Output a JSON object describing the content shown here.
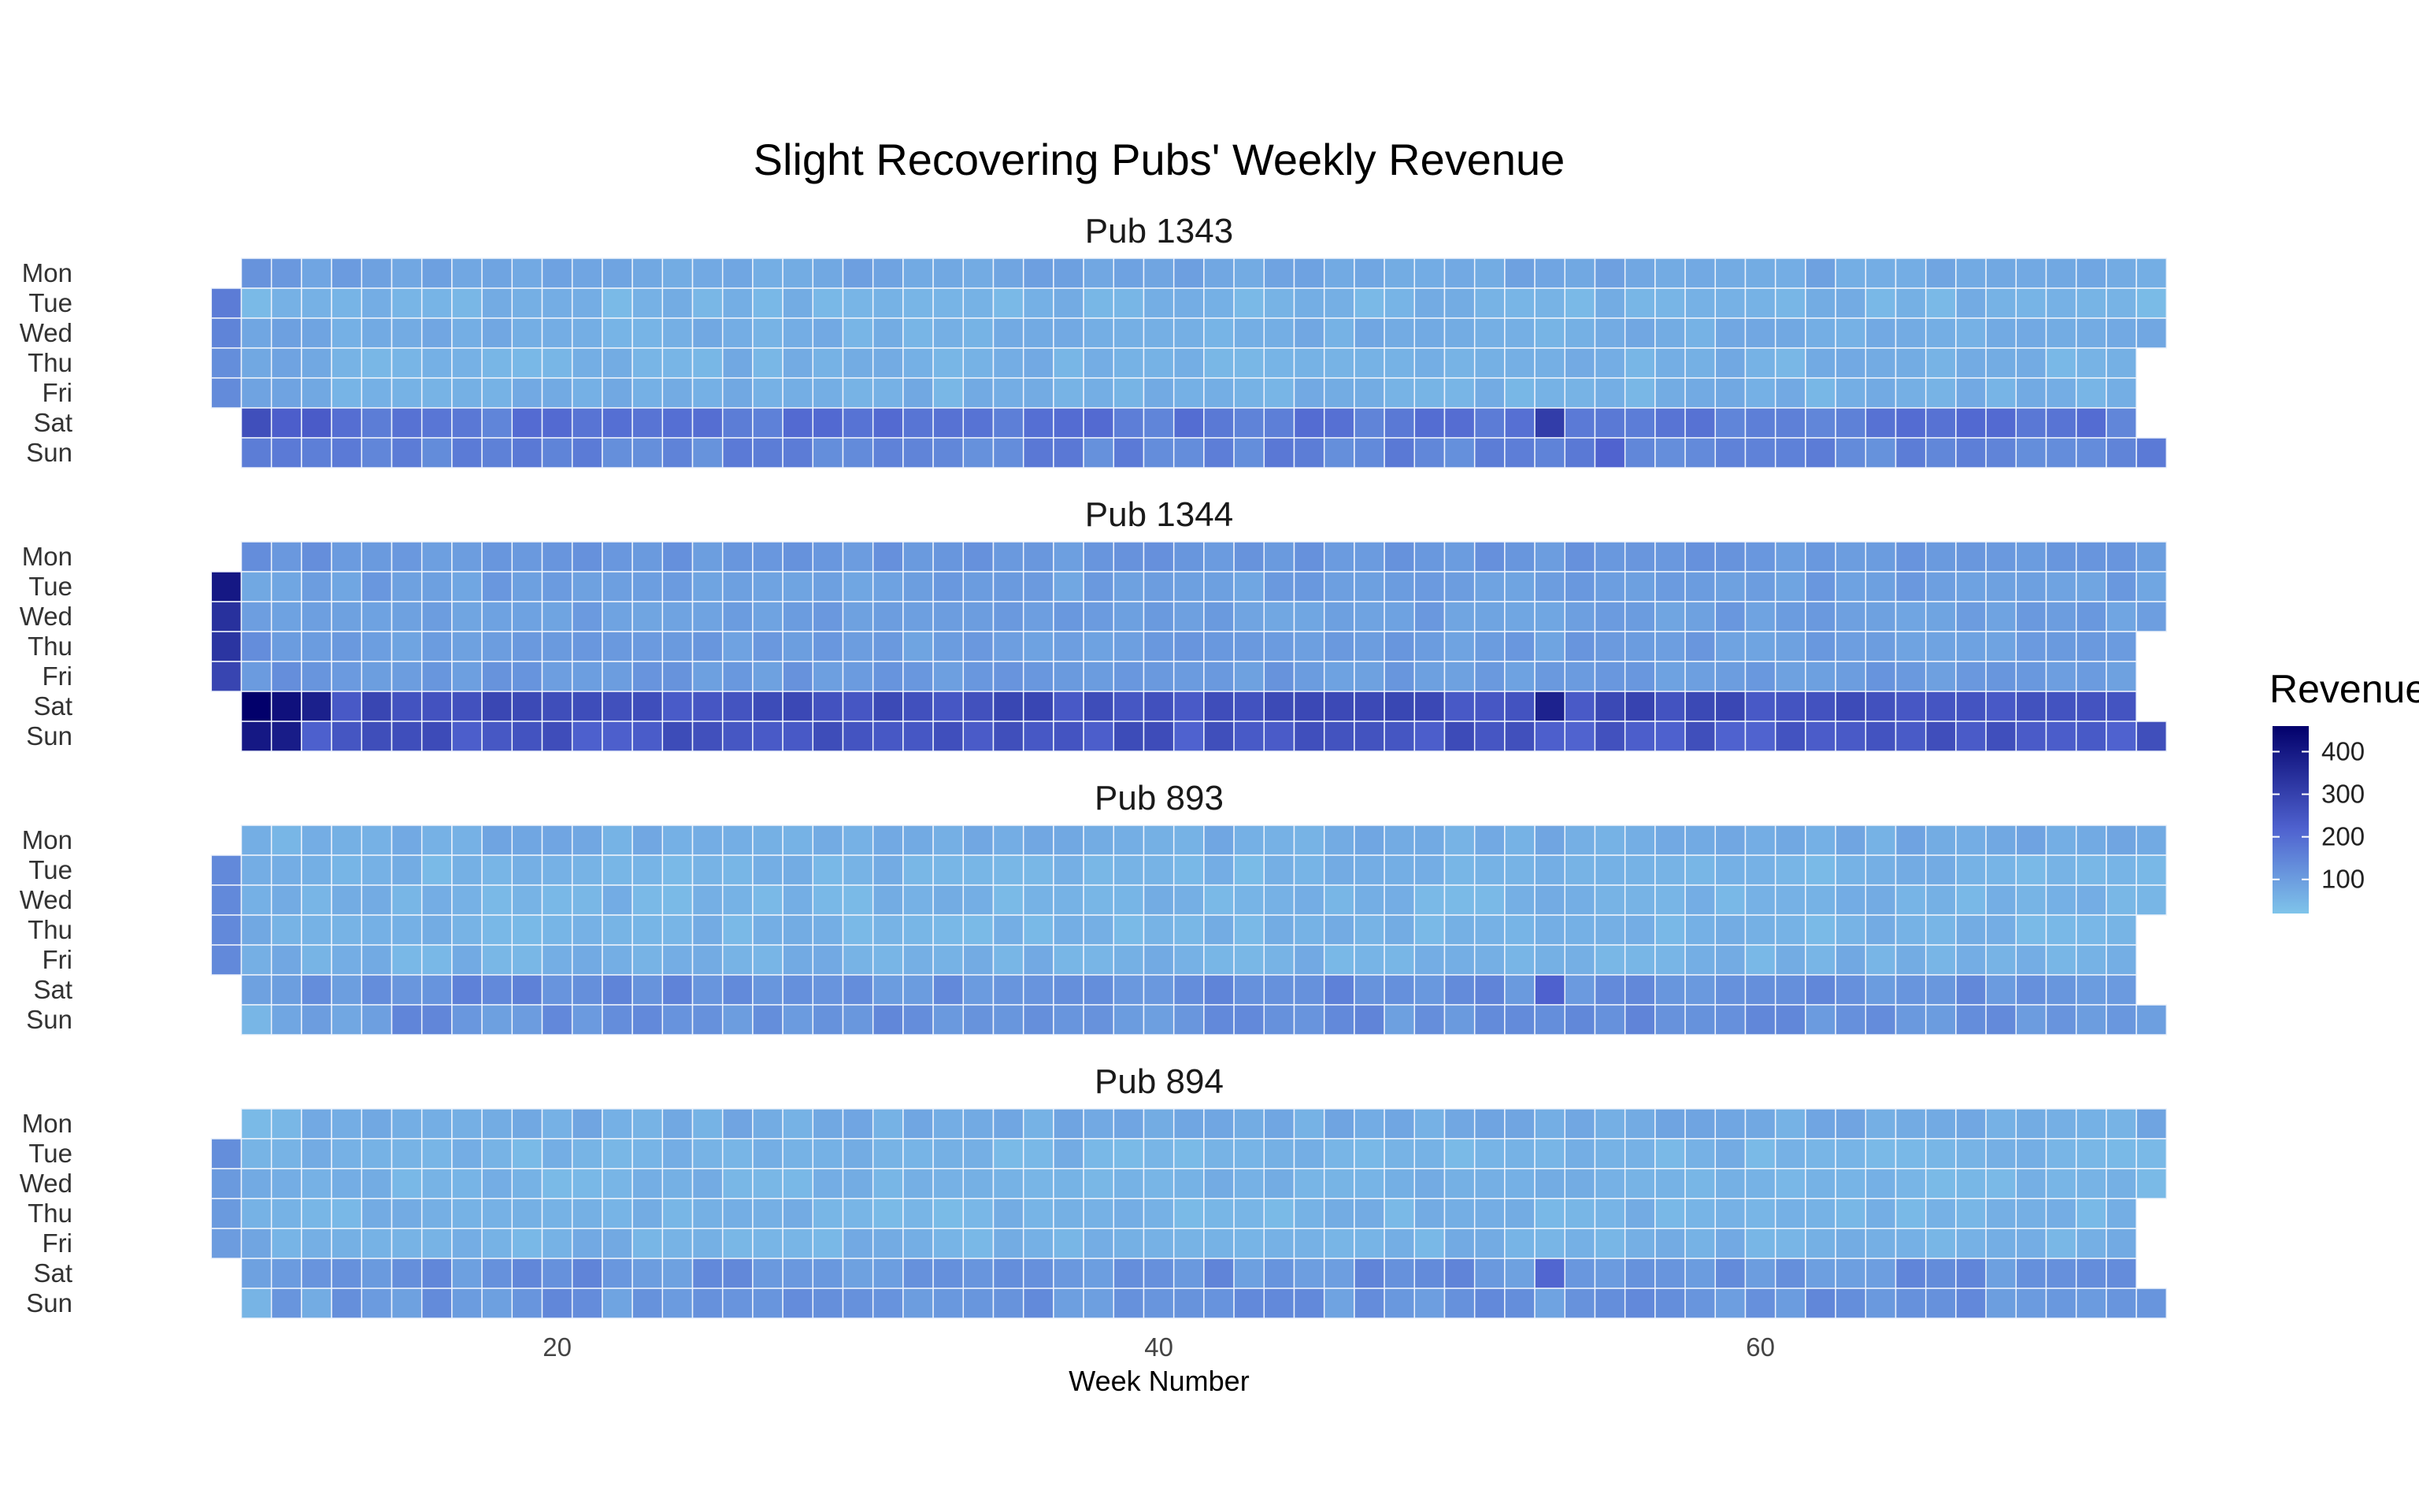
{
  "chart_data": {
    "type": "heatmap",
    "title": "Slight Recovering Pubs' Weekly Revenue",
    "xlabel": "Week Number",
    "ylabel": "",
    "x_ticks": [
      20,
      40,
      60
    ],
    "xlim": [
      8,
      74
    ],
    "days": [
      "Mon",
      "Tue",
      "Wed",
      "Thu",
      "Fri",
      "Sat",
      "Sun"
    ],
    "weeks_start": 9,
    "weeks_end": 73,
    "grid": false,
    "legend": {
      "title": "Revenue",
      "position": "right",
      "ticks": [
        100,
        200,
        300,
        400
      ],
      "range": [
        20,
        460
      ],
      "colors": {
        "low": "#7fc4ea",
        "mid": "#4f62cf",
        "high": "#02006b"
      }
    },
    "panels": [
      {
        "name": "Pub 1343",
        "base": [
          80,
          55,
          65,
          60,
          62,
          175,
          145
        ],
        "early": [
          110,
          0,
          90,
          90,
          90,
          260,
          150
        ],
        "overrides": [
          {
            "week": 9,
            "values": [
              null,
              165,
              150,
              130,
              135,
              null,
              null
            ]
          },
          {
            "week": 53,
            "values": [
              null,
              null,
              null,
              null,
              null,
              310,
              null
            ]
          },
          {
            "week": 55,
            "values": [
              null,
              null,
              null,
              null,
              null,
              null,
              215
            ]
          }
        ]
      },
      {
        "name": "Pub 1344",
        "base": [
          110,
          95,
          95,
          100,
          105,
          265,
          245
        ],
        "early": [
          120,
          90,
          100,
          120,
          120,
          200,
          210
        ],
        "overrides": [
          {
            "week": 9,
            "values": [
              null,
              400,
              340,
              330,
              290,
              null,
              null
            ]
          },
          {
            "week": 10,
            "values": [
              null,
              null,
              null,
              null,
              null,
              460,
              400
            ]
          },
          {
            "week": 11,
            "values": [
              null,
              null,
              null,
              null,
              null,
              420,
              390
            ]
          },
          {
            "week": 12,
            "values": [
              null,
              null,
              null,
              null,
              null,
              380,
              null
            ]
          },
          {
            "week": 53,
            "values": [
              null,
              null,
              null,
              null,
              null,
              375,
              null
            ]
          }
        ]
      },
      {
        "name": "Pub 893",
        "base": [
          70,
          55,
          55,
          55,
          60,
          130,
          120
        ],
        "early": [
          50,
          0,
          60,
          70,
          70,
          110,
          60
        ],
        "overrides": [
          {
            "week": 9,
            "values": [
              null,
              140,
              140,
              140,
              140,
              null,
              null
            ]
          },
          {
            "week": 53,
            "values": [
              null,
              null,
              null,
              null,
              null,
              220,
              null
            ]
          }
        ]
      },
      {
        "name": "Pub 894",
        "base": [
          70,
          55,
          55,
          55,
          60,
          120,
          115
        ],
        "early": [
          40,
          0,
          70,
          70,
          70,
          110,
          75
        ],
        "overrides": [
          {
            "week": 9,
            "values": [
              null,
              130,
              105,
              105,
              100,
              null,
              null
            ]
          },
          {
            "week": 53,
            "values": [
              null,
              null,
              null,
              null,
              null,
              210,
              null
            ]
          }
        ]
      }
    ]
  }
}
